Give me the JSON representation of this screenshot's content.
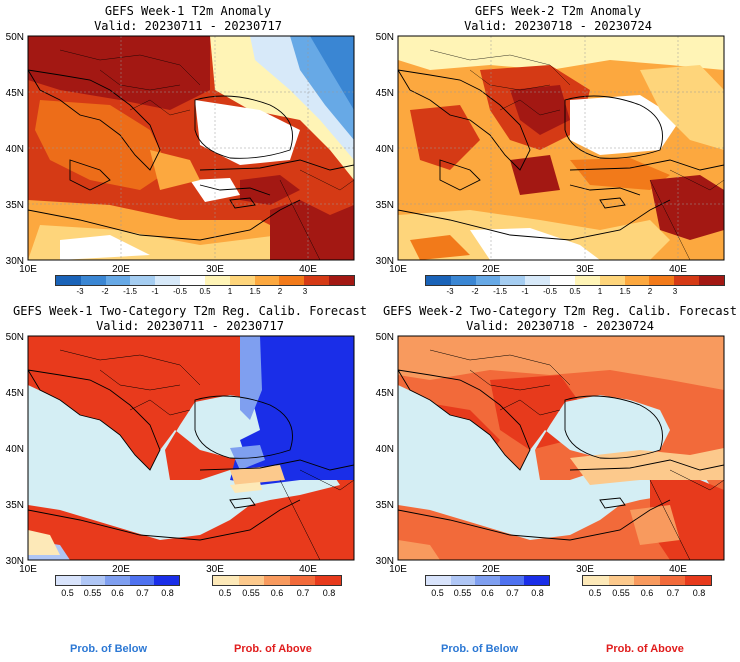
{
  "panels": [
    {
      "id": "w1-anom",
      "title": "GEFS Week-1 T2m Anomaly",
      "valid": "Valid: 20230711 - 20230717"
    },
    {
      "id": "w2-anom",
      "title": "GEFS Week-2 T2m Anomaly",
      "valid": "Valid: 20230718 - 20230724"
    },
    {
      "id": "w1-prob",
      "title": "GEFS Week-1 Two-Category T2m Reg. Calib. Forecast",
      "valid": "Valid: 20230711 - 20230717"
    },
    {
      "id": "w2-prob",
      "title": "GEFS Week-2 Two-Category T2m Reg. Calib. Forecast",
      "valid": "Valid: 20230718 - 20230724"
    }
  ],
  "lat_labels": [
    "50N",
    "45N",
    "40N",
    "35N",
    "30N"
  ],
  "lon_labels": [
    "10E",
    "20E",
    "30E",
    "40E"
  ],
  "anomaly_scale": {
    "labels": [
      "-3",
      "-2",
      "-1.5",
      "-1",
      "-0.5",
      "0.5",
      "1",
      "1.5",
      "2",
      "3"
    ],
    "colors": [
      "#1a63b8",
      "#3a86d3",
      "#67a9e6",
      "#a5cdf1",
      "#d7e9f9",
      "#ffffff",
      "#fff4b6",
      "#fed57b",
      "#fca83f",
      "#f27a1a",
      "#d53a15",
      "#a31813"
    ]
  },
  "prob_below": {
    "labels": [
      "0.5",
      "0.55",
      "0.6",
      "0.7",
      "0.8"
    ],
    "colors": [
      "#d8e3fb",
      "#afc6f5",
      "#7f9ff0",
      "#4f72f0",
      "#1a2ee8"
    ]
  },
  "prob_above": {
    "labels": [
      "0.5",
      "0.55",
      "0.6",
      "0.7",
      "0.8"
    ],
    "colors": [
      "#fde9b8",
      "#fcc98c",
      "#f89a5e",
      "#f26a3a",
      "#e73a1c"
    ]
  },
  "legend": {
    "below": "Prob. of Below",
    "above": "Prob. of Above",
    "below_color": "#2c78d4",
    "above_color": "#e01d1d"
  },
  "colors": {
    "sea": "#d4eef4",
    "land_hot": "#a51a12",
    "land_warm": "#e0621c",
    "land_orange": "#f5a030",
    "pale": "#fff1b3",
    "cold": "#3a86d3",
    "prob_red": "#e83a1c",
    "prob_orange": "#f3733f",
    "prob_blue": "#1a34e6"
  }
}
